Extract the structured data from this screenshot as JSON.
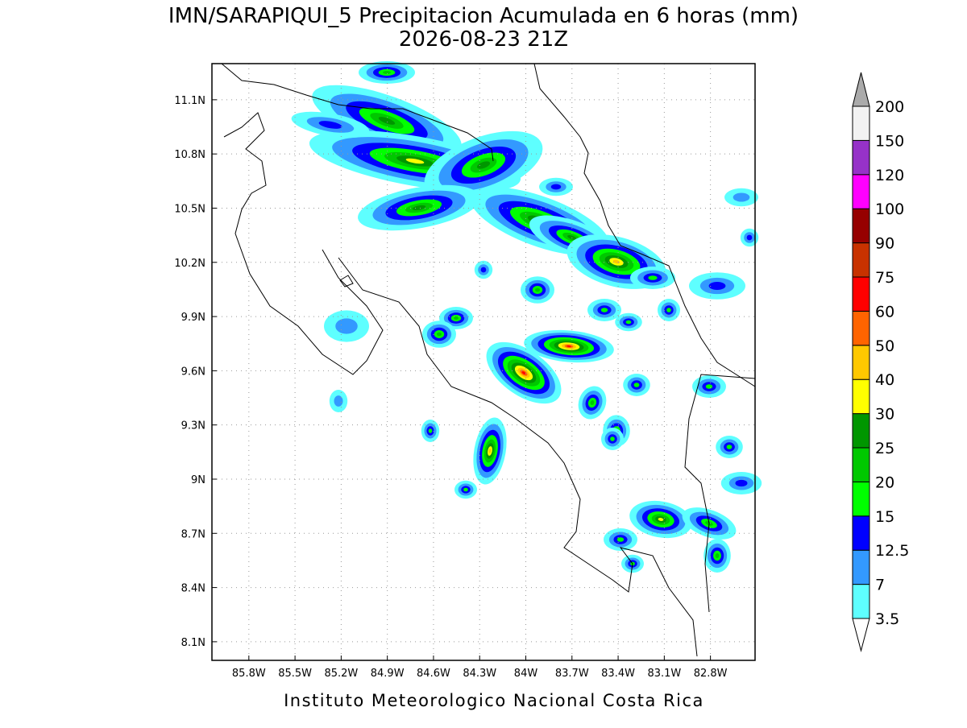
{
  "map": {
    "title": "IMN/SARAPIQUI_5 Precipitacion Acumulada en 6 horas (mm)",
    "subtitle": "2026-08-23 21Z",
    "footer": "Instituto Meteorologico Nacional Costa Rica",
    "lonlim": [
      -86.04,
      -82.51
    ],
    "latlim": [
      7.997,
      11.3
    ],
    "lon_ticks": [
      {
        "value": -85.8,
        "label": "85.8W"
      },
      {
        "value": -85.5,
        "label": "85.5W"
      },
      {
        "value": -85.2,
        "label": "85.2W"
      },
      {
        "value": -84.9,
        "label": "84.9W"
      },
      {
        "value": -84.6,
        "label": "84.6W"
      },
      {
        "value": -84.3,
        "label": "84.3W"
      },
      {
        "value": -84.0,
        "label": "84W"
      },
      {
        "value": -83.7,
        "label": "83.7W"
      },
      {
        "value": -83.4,
        "label": "83.4W"
      },
      {
        "value": -83.1,
        "label": "83.1W"
      },
      {
        "value": -82.8,
        "label": "82.8W"
      }
    ],
    "lat_ticks": [
      {
        "value": 8.1,
        "label": "8.1N"
      },
      {
        "value": 8.4,
        "label": "8.4N"
      },
      {
        "value": 8.7,
        "label": "8.7N"
      },
      {
        "value": 9.0,
        "label": "9N"
      },
      {
        "value": 9.3,
        "label": "9.3N"
      },
      {
        "value": 9.6,
        "label": "9.6N"
      },
      {
        "value": 9.9,
        "label": "9.9N"
      },
      {
        "value": 10.2,
        "label": "10.2N"
      },
      {
        "value": 10.5,
        "label": "10.5N"
      },
      {
        "value": 10.8,
        "label": "10.8N"
      },
      {
        "value": 11.1,
        "label": "11.1N"
      }
    ],
    "grid": true,
    "colorbar": {
      "levels": [
        3.5,
        7,
        12.5,
        15,
        20,
        25,
        30,
        40,
        50,
        60,
        75,
        90,
        100,
        120,
        150,
        200
      ],
      "colors": [
        "#5effff",
        "#3399ff",
        "#0000ff",
        "#00ff00",
        "#00c800",
        "#009600",
        "#ffff00",
        "#ffc800",
        "#ff6400",
        "#ff0000",
        "#c83200",
        "#960000",
        "#ff00ff",
        "#9632c8",
        "#f2f2f2"
      ],
      "over_color": "#aaaaaa"
    }
  }
}
